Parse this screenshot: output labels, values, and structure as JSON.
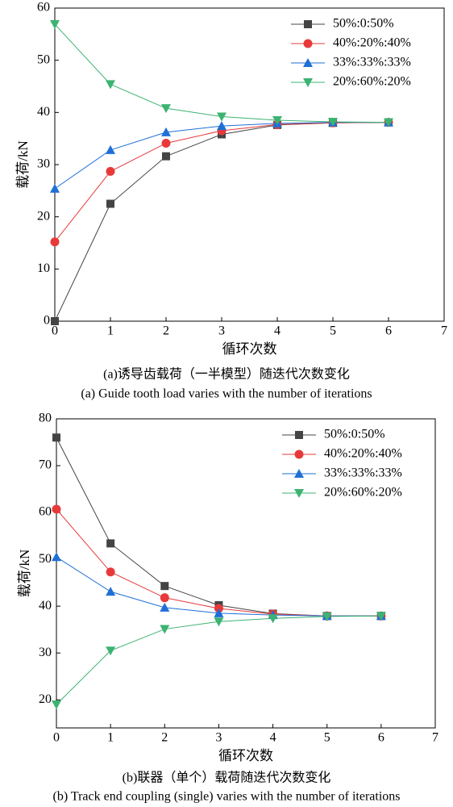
{
  "chart_data": [
    {
      "type": "line",
      "x_label": "循环次数",
      "y_label": "载荷/kN",
      "caption_cn": "(a)诱导齿载荷（一半模型）随迭代次数变化",
      "caption_en": "(a) Guide tooth load varies with the number of iterations",
      "x": [
        0,
        1,
        2,
        3,
        4,
        5,
        6
      ],
      "xlim": [
        0,
        7
      ],
      "xticks": [
        0,
        1,
        2,
        3,
        4,
        5,
        6,
        7
      ],
      "ylim": [
        0,
        60
      ],
      "yticks": [
        0,
        10,
        20,
        30,
        40,
        50,
        60
      ],
      "legend": "upper right",
      "series": [
        {
          "name": "50%:0:50%",
          "color": "#444444",
          "marker": "square",
          "values": [
            0,
            22.5,
            31.6,
            35.8,
            37.6,
            38.0,
            38.1
          ]
        },
        {
          "name": "40%:20%:40%",
          "color": "#e8393a",
          "marker": "circle",
          "values": [
            15.2,
            28.7,
            34.1,
            36.5,
            37.7,
            38.0,
            38.1
          ]
        },
        {
          "name": "33%:33%:33%",
          "color": "#1f6fd6",
          "marker": "triangle-up",
          "values": [
            25.4,
            32.8,
            36.2,
            37.4,
            37.9,
            38.1,
            38.1
          ]
        },
        {
          "name": "20%:60%:20%",
          "color": "#3cb371",
          "marker": "triangle-down",
          "values": [
            56.9,
            45.4,
            40.8,
            39.2,
            38.5,
            38.2,
            38.1
          ]
        }
      ]
    },
    {
      "type": "line",
      "x_label": "循环次数",
      "y_label": "载荷/kN",
      "caption_cn": "(b)联器（单个）载荷随迭代次数变化",
      "caption_en": "(b) Track end coupling (single) varies with the number of iterations",
      "x": [
        0,
        1,
        2,
        3,
        4,
        5,
        6
      ],
      "xlim": [
        0,
        7
      ],
      "xticks": [
        0,
        1,
        2,
        3,
        4,
        5,
        6,
        7
      ],
      "ylim": [
        14,
        80
      ],
      "yticks": [
        20,
        30,
        40,
        50,
        60,
        70,
        80
      ],
      "legend": "upper right",
      "series": [
        {
          "name": "50%:0:50%",
          "color": "#444444",
          "marker": "square",
          "values": [
            76.0,
            53.4,
            44.3,
            40.2,
            38.4,
            37.9,
            37.9
          ]
        },
        {
          "name": "40%:20%:40%",
          "color": "#e8393a",
          "marker": "circle",
          "values": [
            60.7,
            47.3,
            41.8,
            39.5,
            38.3,
            37.9,
            37.9
          ]
        },
        {
          "name": "33%:33%:33%",
          "color": "#1f6fd6",
          "marker": "triangle-up",
          "values": [
            50.5,
            43.1,
            39.7,
            38.5,
            38.1,
            37.9,
            37.9
          ]
        },
        {
          "name": "20%:60%:20%",
          "color": "#3cb371",
          "marker": "triangle-down",
          "values": [
            19.0,
            30.5,
            35.1,
            36.7,
            37.4,
            37.8,
            37.9
          ]
        }
      ]
    }
  ]
}
